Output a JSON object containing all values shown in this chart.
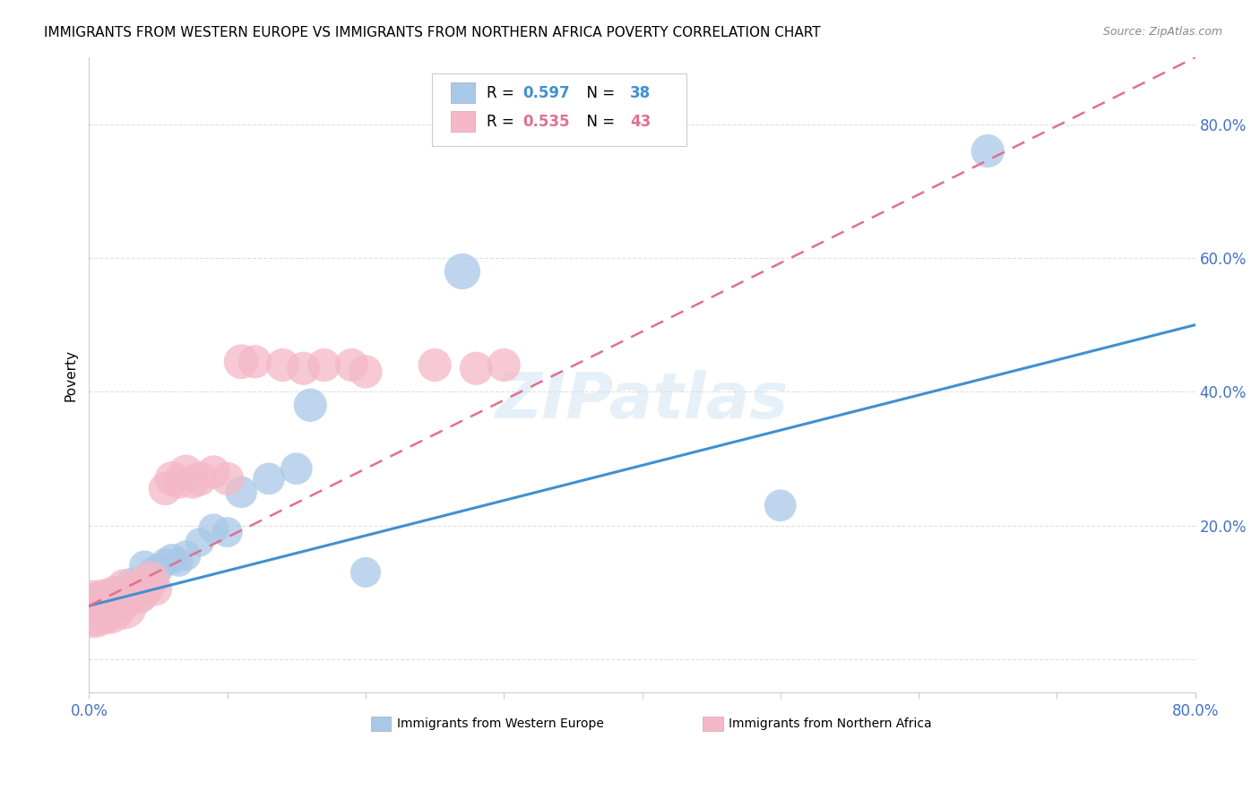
{
  "title": "IMMIGRANTS FROM WESTERN EUROPE VS IMMIGRANTS FROM NORTHERN AFRICA POVERTY CORRELATION CHART",
  "source": "Source: ZipAtlas.com",
  "ylabel": "Poverty",
  "xlim": [
    0,
    0.8
  ],
  "ylim": [
    -0.05,
    0.9
  ],
  "yticks": [
    0.0,
    0.2,
    0.4,
    0.6,
    0.8
  ],
  "ytick_labels": [
    "",
    "20.0%",
    "40.0%",
    "60.0%",
    "80.0%"
  ],
  "xticks": [
    0.0,
    0.1,
    0.2,
    0.3,
    0.4,
    0.5,
    0.6,
    0.7,
    0.8
  ],
  "xtick_labels": [
    "0.0%",
    "",
    "",
    "",
    "",
    "",
    "",
    "",
    "80.0%"
  ],
  "blue_color": "#a8c8e8",
  "pink_color": "#f4b8c8",
  "blue_line_color": "#4090d0",
  "pink_line_color": "#e07090",
  "pink_line_dashed": true,
  "axis_tick_color": "#4472C4",
  "legend_R1": "0.597",
  "legend_N1": "38",
  "legend_R2": "0.535",
  "legend_N2": "43",
  "watermark": "ZIPatlas",
  "blue_scatter_x": [
    0.005,
    0.008,
    0.01,
    0.012,
    0.015,
    0.015,
    0.018,
    0.02,
    0.02,
    0.022,
    0.025,
    0.025,
    0.028,
    0.03,
    0.03,
    0.032,
    0.035,
    0.035,
    0.038,
    0.04,
    0.04,
    0.045,
    0.05,
    0.055,
    0.06,
    0.065,
    0.07,
    0.08,
    0.09,
    0.1,
    0.11,
    0.13,
    0.15,
    0.16,
    0.2,
    0.27,
    0.5,
    0.65
  ],
  "blue_scatter_y": [
    0.095,
    0.085,
    0.075,
    0.08,
    0.1,
    0.07,
    0.09,
    0.08,
    0.1,
    0.085,
    0.095,
    0.075,
    0.09,
    0.085,
    0.115,
    0.11,
    0.095,
    0.115,
    0.09,
    0.105,
    0.14,
    0.13,
    0.135,
    0.145,
    0.15,
    0.145,
    0.155,
    0.175,
    0.195,
    0.19,
    0.25,
    0.27,
    0.285,
    0.38,
    0.13,
    0.58,
    0.23,
    0.76
  ],
  "blue_scatter_size": [
    40,
    35,
    50,
    35,
    40,
    35,
    40,
    35,
    50,
    40,
    45,
    35,
    40,
    40,
    45,
    40,
    40,
    45,
    40,
    45,
    50,
    45,
    50,
    45,
    50,
    45,
    50,
    45,
    50,
    50,
    55,
    55,
    55,
    60,
    50,
    70,
    55,
    60
  ],
  "pink_scatter_x": [
    0.003,
    0.005,
    0.007,
    0.008,
    0.01,
    0.01,
    0.012,
    0.015,
    0.015,
    0.018,
    0.018,
    0.02,
    0.02,
    0.022,
    0.025,
    0.025,
    0.028,
    0.03,
    0.032,
    0.035,
    0.038,
    0.04,
    0.042,
    0.045,
    0.048,
    0.055,
    0.06,
    0.065,
    0.07,
    0.075,
    0.08,
    0.09,
    0.1,
    0.11,
    0.12,
    0.14,
    0.155,
    0.17,
    0.19,
    0.2,
    0.25,
    0.28,
    0.3
  ],
  "pink_scatter_y": [
    0.075,
    0.065,
    0.07,
    0.085,
    0.075,
    0.095,
    0.08,
    0.07,
    0.09,
    0.085,
    0.1,
    0.075,
    0.095,
    0.085,
    0.08,
    0.11,
    0.09,
    0.1,
    0.095,
    0.1,
    0.095,
    0.115,
    0.105,
    0.12,
    0.105,
    0.255,
    0.27,
    0.265,
    0.28,
    0.265,
    0.27,
    0.28,
    0.27,
    0.445,
    0.445,
    0.44,
    0.435,
    0.44,
    0.44,
    0.43,
    0.44,
    0.435,
    0.44
  ],
  "pink_scatter_size": [
    180,
    90,
    60,
    50,
    130,
    60,
    60,
    100,
    60,
    70,
    60,
    80,
    60,
    60,
    120,
    60,
    60,
    70,
    60,
    70,
    60,
    70,
    60,
    70,
    60,
    60,
    65,
    60,
    65,
    60,
    65,
    60,
    60,
    65,
    60,
    60,
    60,
    60,
    60,
    60,
    60,
    60,
    60
  ],
  "grid_color": "#e0e0e0",
  "background_color": "#ffffff"
}
